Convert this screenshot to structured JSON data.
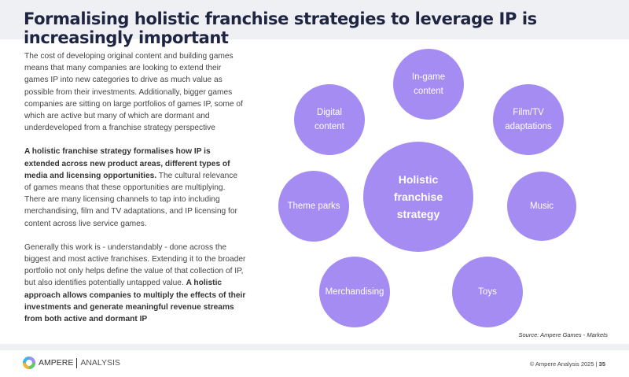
{
  "title": "Formalising holistic franchise strategies to leverage IP is increasingly important",
  "paragraphs": {
    "p1": "The cost of developing original content and building games means that many companies are looking to extend their games IP into new categories to drive as much value as possible from their investments. Additionally, bigger games companies are sitting on large portfolios of games IP, some of which are active but many of which are dormant and underdeveloped from a franchise strategy perspective",
    "p2_bold": "A holistic franchise strategy formalises how IP is extended across new product areas, different types of media and licensing opportunities.",
    "p2_rest": " The cultural relevance of games means that these opportunities are multiplying. There are many licensing channels to tap into including merchandising, film and TV adaptations, and IP licensing for content across live service games.",
    "p3_start": "Generally this work is - understandably - done across the biggest and most active franchises. Extending it to the broader portfolio not only helps define the value of that collection of IP, but also identifies potentially untapped value. ",
    "p3_bold": "A holistic approach allows companies to multiply the effects of their investments and generate meaningful revenue streams from both active and dormant IP"
  },
  "diagram": {
    "center": "Holistic franchise strategy",
    "nodes": [
      "In-game content",
      "Digital content",
      "Film/TV adaptations",
      "Theme parks",
      "Music",
      "Merchandising",
      "Toys"
    ],
    "color": "#a48cf2"
  },
  "source": "Source: Ampere Games - Markets",
  "footer": {
    "logo_a": "AMPERE",
    "logo_b": "ANALYSIS",
    "copyright": "© Ampere Analysis 2025 | ",
    "page": "35"
  }
}
